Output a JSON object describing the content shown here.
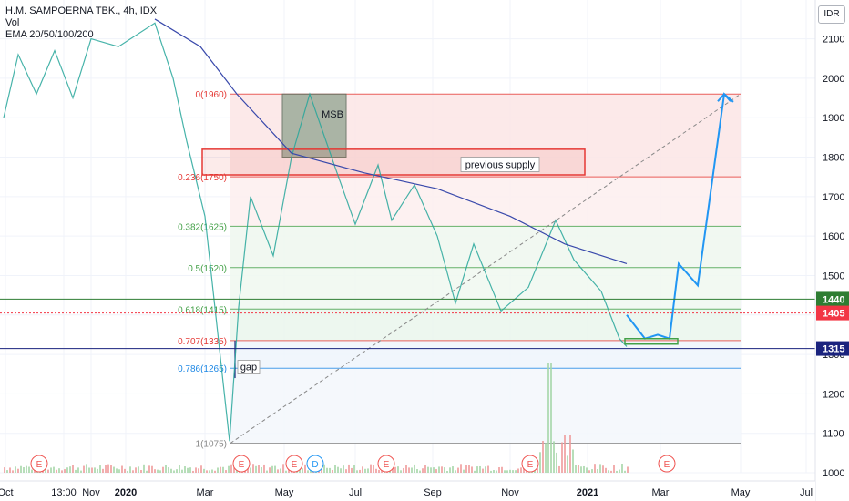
{
  "legend": {
    "symbol": "H.M. SAMPOERNA TBK., 4h, IDX",
    "line2": "Vol",
    "line3": "EMA 20/50/100/200"
  },
  "currency_badge": "IDR",
  "colors": {
    "fib_red": "#e53935",
    "fib_green": "#43a047",
    "fib_blue": "#1e88e5",
    "ema20": "#e57373",
    "ema50": "#ff9800",
    "ema100": "#4dd0e1",
    "ema200": "#3949ab",
    "projection": "#2196f3",
    "price_line_green": "#2e7d32",
    "price_line_red": "#f23645",
    "price_line_navy": "#1a237e"
  },
  "chart_data": {
    "type": "line",
    "title": "H.M. SAMPOERNA TBK., 4h, IDX",
    "ylabel": "IDR",
    "ylim": [
      1000,
      2150
    ],
    "y_ticks": [
      1000,
      1100,
      1200,
      1300,
      1400,
      1500,
      1600,
      1700,
      1800,
      1900,
      2000,
      2100
    ],
    "x_tick_labels": [
      "Oct",
      "13:00",
      "Nov",
      "2020",
      "Mar",
      "May",
      "Jul",
      "Sep",
      "Nov",
      "2021",
      "Mar",
      "May",
      "Jul"
    ],
    "fib_levels": [
      {
        "label": "0(1960)",
        "value": 1960
      },
      {
        "label": "0.236(1750)",
        "value": 1750
      },
      {
        "label": "0.382(1625)",
        "value": 1625
      },
      {
        "label": "0.5(1520)",
        "value": 1520
      },
      {
        "label": "0.618(1415)",
        "value": 1415
      },
      {
        "label": "0.707(1335)",
        "value": 1335
      },
      {
        "label": "0.786(1265)",
        "value": 1265
      },
      {
        "label": "1(1075)",
        "value": 1075
      }
    ],
    "price_labels": [
      {
        "text": "1440",
        "value": 1440
      },
      {
        "text": "1405",
        "value": 1405
      },
      {
        "text": "1315",
        "value": 1315
      }
    ],
    "price_path": [
      1900,
      2060,
      1960,
      2070,
      1950,
      2100,
      2080,
      2140,
      2000,
      1840,
      1650,
      1080,
      1420,
      1700,
      1550,
      1800,
      1960,
      1760,
      1630,
      1780,
      1640,
      1730,
      1600,
      1430,
      1580,
      1410,
      1470,
      1640,
      1540,
      1460,
      1340,
      1320
    ],
    "ema200_path": [
      2150,
      2080,
      1960,
      1810,
      1760,
      1720,
      1650,
      1580,
      1530
    ],
    "projection_path": [
      1400,
      1340,
      1350,
      1340,
      1530,
      1475,
      1960,
      1940
    ],
    "annotations": [
      "MSB",
      "previous supply",
      "gap"
    ],
    "event_markers": [
      "E",
      "E",
      "E",
      "D",
      "E",
      "E",
      "E"
    ]
  }
}
